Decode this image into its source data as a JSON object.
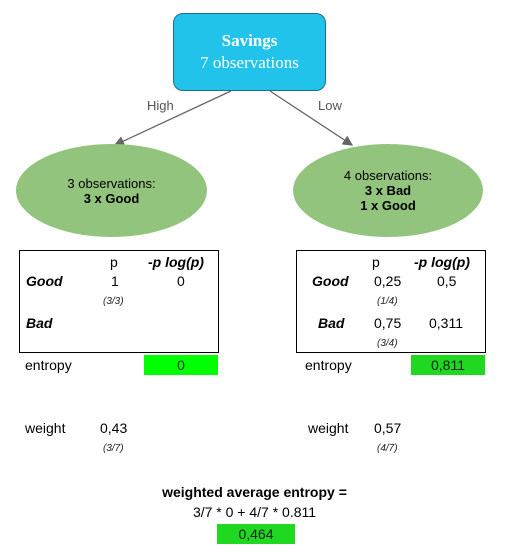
{
  "root": {
    "title": "Savings",
    "subtitle": "7 observations"
  },
  "edges": {
    "left_label": "High",
    "right_label": "Low"
  },
  "left_node": {
    "line1": "3 observations:",
    "line2": "3 x Good"
  },
  "right_node": {
    "line1": "4 observations:",
    "line2": "3 x Bad",
    "line3": "1 x Good"
  },
  "left_table": {
    "col_p": "p",
    "col_plogp": "-p log(p)",
    "row_good": {
      "label": "Good",
      "p": "1",
      "p_frac": "(3/3)",
      "plogp": "0"
    },
    "row_bad": {
      "label": "Bad"
    },
    "entropy_label": "entropy",
    "entropy_value": "0",
    "weight_label": "weight",
    "weight_value": "0,43",
    "weight_frac": "(3/7)"
  },
  "right_table": {
    "col_p": "p",
    "col_plogp": "-p log(p)",
    "row_good": {
      "label": "Good",
      "p": "0,25",
      "p_frac": "(1/4)",
      "plogp": "0,5"
    },
    "row_bad": {
      "label": "Bad",
      "p": "0,75",
      "p_frac": "(3/4)",
      "plogp": "0,311"
    },
    "entropy_label": "entropy",
    "entropy_value": "0,811",
    "weight_label": "weight",
    "weight_value": "0,57",
    "weight_frac": "(4/7)"
  },
  "summary": {
    "title": "weighted average entropy =",
    "formula": "3/7 * 0 + 4/7 * 0.811",
    "result": "0,464"
  },
  "colors": {
    "root": "#22c3ea",
    "leaf": "#93c47d",
    "highlight": "#00ff00"
  }
}
